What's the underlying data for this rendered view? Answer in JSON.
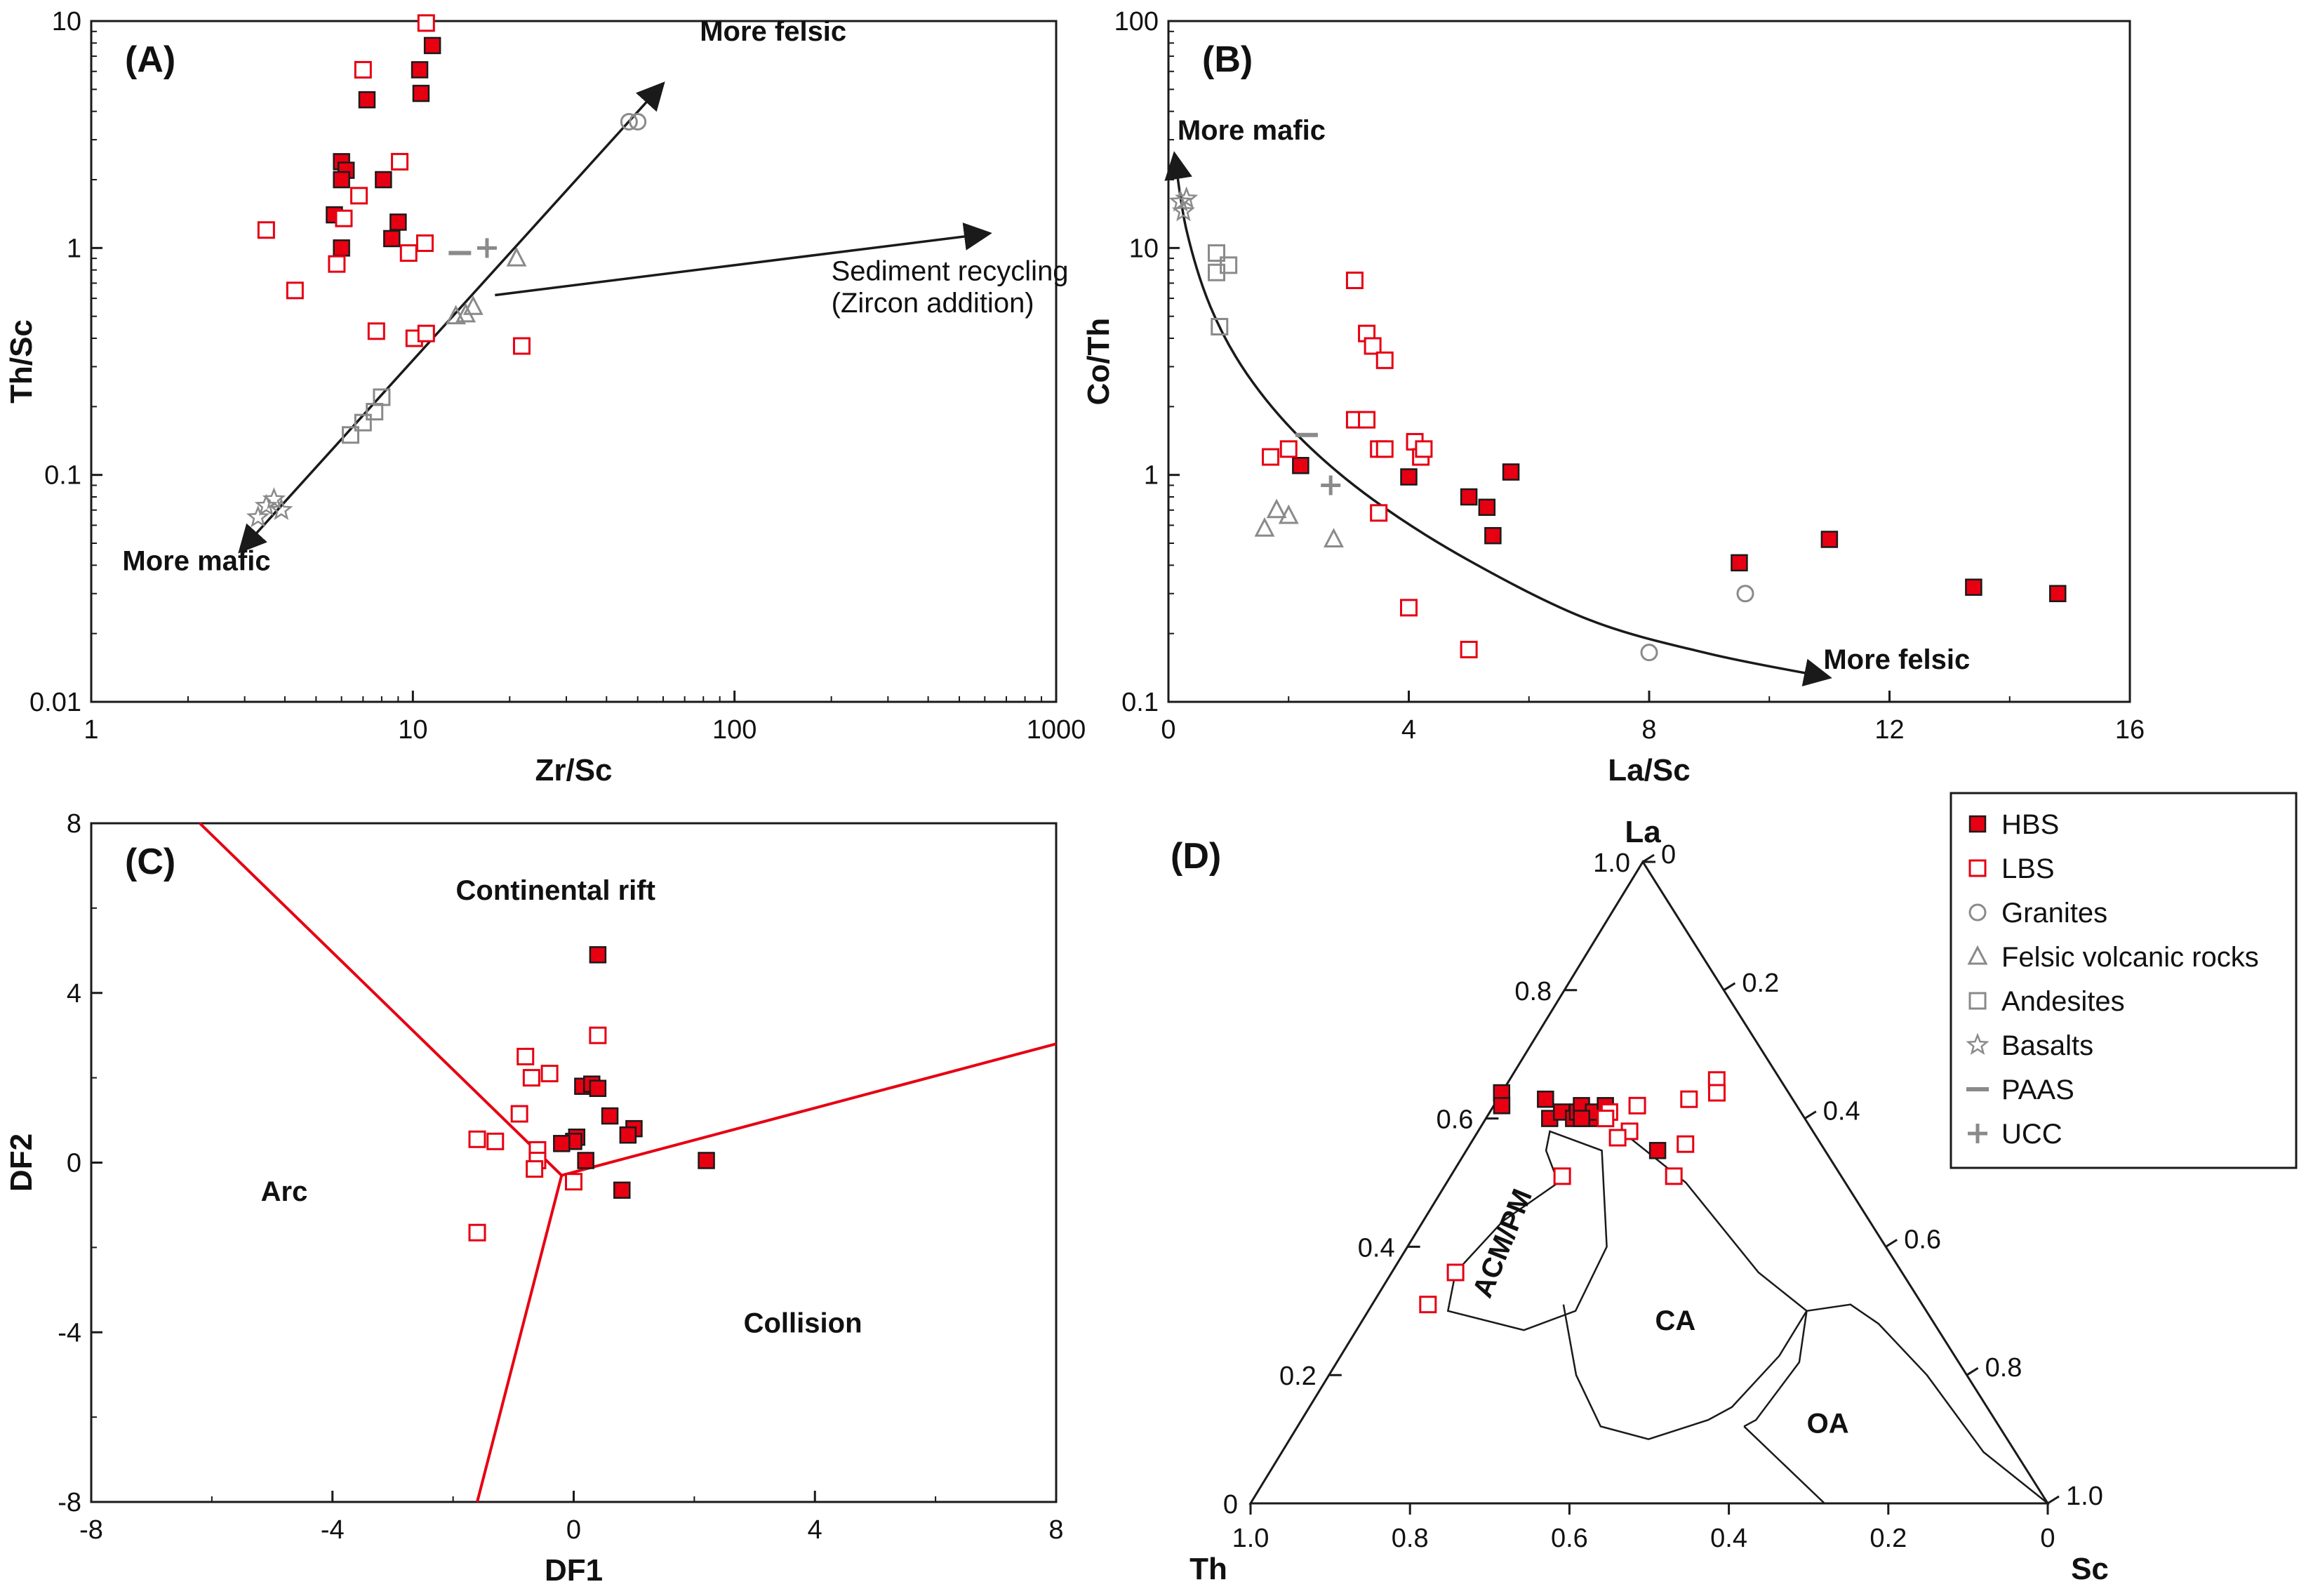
{
  "colors": {
    "hbs": "#e60012",
    "lbs": "#e60012",
    "ref": "#8a8a8a",
    "line": "#1a1a1a",
    "boundary": "#e60012"
  },
  "legend": {
    "items": [
      {
        "label": "HBS",
        "marker": "filled-square"
      },
      {
        "label": "LBS",
        "marker": "open-square-red"
      },
      {
        "label": "Granites",
        "marker": "circle"
      },
      {
        "label": "Felsic volcanic rocks",
        "marker": "triangle"
      },
      {
        "label": "Andesites",
        "marker": "square"
      },
      {
        "label": "Basalts",
        "marker": "star"
      },
      {
        "label": "PAAS",
        "marker": "dash"
      },
      {
        "label": "UCC",
        "marker": "plus"
      }
    ]
  },
  "chart_data": [
    {
      "panel": "(A)",
      "type": "scatter",
      "xscale": "log",
      "yscale": "log",
      "xlabel": "Zr/Sc",
      "ylabel": "Th/Sc",
      "xlim": [
        1,
        1000
      ],
      "ylim": [
        0.01,
        10
      ],
      "xticks": [
        "1",
        "10",
        "100",
        "1000"
      ],
      "yticks": [
        "0.01",
        "0.1",
        "1",
        "10"
      ],
      "annotations": [
        {
          "text": "More felsic",
          "x": 78,
          "y": 8.2,
          "bold": true
        },
        {
          "text": "More mafic",
          "x": 1.25,
          "y": 0.038,
          "bold": true
        },
        {
          "text": "Sediment recycling",
          "x": 200,
          "y": 0.72
        },
        {
          "text": "(Zircon addition)",
          "x": 200,
          "y": 0.52
        }
      ],
      "arrows": [
        {
          "name": "felsic-mafic",
          "from": [
            2.9,
            0.046
          ],
          "to": [
            60,
            5.3
          ],
          "double": true
        },
        {
          "name": "recycling",
          "from": [
            18,
            0.62
          ],
          "to": [
            620,
            1.16
          ]
        }
      ],
      "series": [
        {
          "name": "HBS",
          "marker": "filled-square",
          "points": [
            [
              11.5,
              7.8
            ],
            [
              7.2,
              4.5
            ],
            [
              10.5,
              6.1
            ],
            [
              10.6,
              4.8
            ],
            [
              6,
              2.4
            ],
            [
              6.2,
              2.2
            ],
            [
              6,
              2
            ],
            [
              8.1,
              2
            ],
            [
              5.7,
              1.4
            ],
            [
              9,
              1.3
            ],
            [
              8.6,
              1.1
            ],
            [
              6,
              1
            ]
          ]
        },
        {
          "name": "LBS",
          "marker": "open-square",
          "points": [
            [
              11,
              9.8
            ],
            [
              7,
              6.1
            ],
            [
              9.1,
              2.4
            ],
            [
              6.8,
              1.7
            ],
            [
              6.1,
              1.35
            ],
            [
              10.9,
              1.05
            ],
            [
              5.8,
              0.85
            ],
            [
              9.7,
              0.95
            ],
            [
              3.5,
              1.2
            ],
            [
              4.3,
              0.65
            ],
            [
              7.7,
              0.43
            ],
            [
              10.1,
              0.4
            ],
            [
              11,
              0.42
            ],
            [
              21.8,
              0.37
            ]
          ]
        },
        {
          "name": "Granites",
          "marker": "circle",
          "points": [
            [
              47,
              3.6
            ],
            [
              50,
              3.6
            ]
          ]
        },
        {
          "name": "Felsic volcanic rocks",
          "marker": "triangle",
          "points": [
            [
              21,
              0.9
            ],
            [
              13.6,
              0.5
            ],
            [
              14.6,
              0.51
            ],
            [
              15.4,
              0.55
            ]
          ]
        },
        {
          "name": "Andesites",
          "marker": "square",
          "points": [
            [
              6.4,
              0.15
            ],
            [
              7,
              0.17
            ],
            [
              7.6,
              0.19
            ],
            [
              8,
              0.22
            ]
          ]
        },
        {
          "name": "Basalts",
          "marker": "star",
          "points": [
            [
              3.3,
              0.065
            ],
            [
              3.5,
              0.073
            ],
            [
              3.7,
              0.078
            ],
            [
              3.9,
              0.07
            ]
          ]
        },
        {
          "name": "PAAS",
          "marker": "dash",
          "points": [
            [
              14,
              0.95
            ]
          ]
        },
        {
          "name": "UCC",
          "marker": "plus",
          "points": [
            [
              17,
              1
            ]
          ]
        }
      ]
    },
    {
      "panel": "(B)",
      "type": "scatter",
      "xscale": "linear",
      "yscale": "log",
      "xlabel": "La/Sc",
      "ylabel": "Co/Th",
      "xlim": [
        0,
        16
      ],
      "ylim": [
        0.1,
        100
      ],
      "xticks": [
        "0",
        "4",
        "8",
        "12",
        "16"
      ],
      "yticks": [
        "0.1",
        "1",
        "10",
        "100"
      ],
      "annotations": [
        {
          "text": "More mafic",
          "x": 0.15,
          "y": 30,
          "bold": true
        },
        {
          "text": "More felsic",
          "x": 10.9,
          "y": 0.14,
          "bold": true
        }
      ],
      "curve": {
        "name": "mixing-curve",
        "points": [
          [
            0.1,
            26
          ],
          [
            0.3,
            12
          ],
          [
            0.7,
            5.5
          ],
          [
            1.3,
            2.8
          ],
          [
            2.2,
            1.45
          ],
          [
            3.4,
            0.78
          ],
          [
            5,
            0.42
          ],
          [
            7,
            0.23
          ],
          [
            9,
            0.163
          ],
          [
            11,
            0.128
          ]
        ]
      },
      "series": [
        {
          "name": "HBS",
          "marker": "filled-square",
          "points": [
            [
              2.2,
              1.1
            ],
            [
              4,
              0.98
            ],
            [
              5,
              0.8
            ],
            [
              5.3,
              0.72
            ],
            [
              5.7,
              1.03
            ],
            [
              5.4,
              0.54
            ],
            [
              9.5,
              0.41
            ],
            [
              11,
              0.52
            ],
            [
              13.4,
              0.32
            ],
            [
              14.8,
              0.3
            ]
          ]
        },
        {
          "name": "LBS",
          "marker": "open-square",
          "points": [
            [
              3.1,
              7.2
            ],
            [
              3.3,
              4.2
            ],
            [
              3.4,
              3.7
            ],
            [
              3.6,
              3.2
            ],
            [
              3.1,
              1.75
            ],
            [
              3.3,
              1.75
            ],
            [
              3.5,
              1.3
            ],
            [
              3.6,
              1.3
            ],
            [
              4.1,
              1.4
            ],
            [
              4.2,
              1.2
            ],
            [
              4.25,
              1.3
            ],
            [
              1.7,
              1.2
            ],
            [
              2,
              1.3
            ],
            [
              3.5,
              0.68
            ],
            [
              4,
              0.26
            ],
            [
              5,
              0.17
            ]
          ]
        },
        {
          "name": "Granites",
          "marker": "circle",
          "points": [
            [
              9.6,
              0.3
            ],
            [
              8,
              0.165
            ]
          ]
        },
        {
          "name": "Felsic volcanic rocks",
          "marker": "triangle",
          "points": [
            [
              1.6,
              0.58
            ],
            [
              1.8,
              0.7
            ],
            [
              2,
              0.66
            ],
            [
              2.75,
              0.52
            ]
          ]
        },
        {
          "name": "Andesites",
          "marker": "square",
          "points": [
            [
              0.8,
              9.5
            ],
            [
              0.8,
              7.8
            ],
            [
              1,
              8.4
            ],
            [
              0.85,
              4.5
            ]
          ]
        },
        {
          "name": "Basalts",
          "marker": "star",
          "points": [
            [
              0.2,
              16
            ],
            [
              0.25,
              14.5
            ],
            [
              0.3,
              16.5
            ]
          ]
        },
        {
          "name": "PAAS",
          "marker": "dash",
          "points": [
            [
              2.3,
              1.5
            ]
          ]
        },
        {
          "name": "UCC",
          "marker": "plus",
          "points": [
            [
              2.7,
              0.9
            ]
          ]
        }
      ]
    },
    {
      "panel": "(C)",
      "type": "scatter",
      "xscale": "linear",
      "yscale": "linear",
      "xlabel": "DF1",
      "ylabel": "DF2",
      "xlim": [
        -8,
        8
      ],
      "ylim": [
        -8,
        8
      ],
      "xticks": [
        "-8",
        "-4",
        "0",
        "4",
        "8"
      ],
      "yticks": [
        "-8",
        "-4",
        "0",
        "4",
        "8"
      ],
      "fields": [
        {
          "text": "Continental rift",
          "x": -0.3,
          "y": 6.2
        },
        {
          "text": "Arc",
          "x": -4.8,
          "y": -0.9
        },
        {
          "text": "Collision",
          "x": 3.8,
          "y": -4
        }
      ],
      "boundaries": [
        {
          "name": "arc-rift",
          "from": [
            -6.2,
            8
          ],
          "to": [
            -0.2,
            -0.3
          ]
        },
        {
          "name": "rift-collision",
          "from": [
            -0.2,
            -0.3
          ],
          "to": [
            8,
            2.8
          ]
        },
        {
          "name": "arc-collision",
          "from": [
            -0.2,
            -0.3
          ],
          "to": [
            -1.6,
            -8
          ]
        }
      ],
      "series": [
        {
          "name": "HBS",
          "marker": "filled-square",
          "points": [
            [
              0.4,
              4.9
            ],
            [
              0.15,
              1.8
            ],
            [
              0.3,
              1.85
            ],
            [
              0.4,
              1.75
            ],
            [
              0.6,
              1.1
            ],
            [
              1,
              0.8
            ],
            [
              0.9,
              0.65
            ],
            [
              0.05,
              0.6
            ],
            [
              0,
              0.5
            ],
            [
              -0.2,
              0.45
            ],
            [
              0.2,
              0.05
            ],
            [
              0.8,
              -0.65
            ],
            [
              2.2,
              0.05
            ]
          ]
        },
        {
          "name": "LBS",
          "marker": "open-square",
          "points": [
            [
              0.4,
              3
            ],
            [
              -0.8,
              2.5
            ],
            [
              -0.7,
              2
            ],
            [
              -0.4,
              2.1
            ],
            [
              -0.9,
              1.15
            ],
            [
              -1.6,
              0.55
            ],
            [
              -1.3,
              0.5
            ],
            [
              -0.6,
              0.3
            ],
            [
              -0.6,
              0.05
            ],
            [
              -0.65,
              -0.15
            ],
            [
              0,
              -0.45
            ],
            [
              -1.6,
              -1.65
            ]
          ]
        }
      ]
    },
    {
      "panel": "(D)",
      "type": "ternary",
      "apex_labels": {
        "top": "La",
        "left": "Th",
        "right": "Sc"
      },
      "left_ticks": [
        "0",
        "0.2",
        "0.4",
        "0.6",
        "0.8",
        "1.0"
      ],
      "right_ticks": [
        "0",
        "0.2",
        "0.4",
        "0.6",
        "0.8",
        "1.0"
      ],
      "bottom_ticks": [
        "1.0",
        "0.8",
        "0.6",
        "0.4",
        "0.2",
        "0"
      ],
      "fields": [
        {
          "text": "ACM/PM",
          "rotated": true
        },
        {
          "text": "CA"
        },
        {
          "text": "OA"
        }
      ],
      "series": [
        {
          "name": "HBS",
          "note": "plotted as [La,Th,Sc] fractions",
          "marker": "filled-square",
          "points": [
            [
              0.64,
              0.36,
              0
            ],
            [
              0.62,
              0.37,
              0.01
            ],
            [
              0.6,
              0.32,
              0.08
            ],
            [
              0.61,
              0.3,
              0.09
            ],
            [
              0.6,
              0.29,
              0.11
            ],
            [
              0.61,
              0.28,
              0.11
            ],
            [
              0.62,
              0.27,
              0.11
            ],
            [
              0.6,
              0.27,
              0.13
            ],
            [
              0.55,
              0.21,
              0.24
            ],
            [
              0.63,
              0.31,
              0.06
            ],
            [
              0.61,
              0.26,
              0.13
            ],
            [
              0.62,
              0.24,
              0.14
            ],
            [
              0.6,
              0.28,
              0.12
            ]
          ]
        },
        {
          "name": "LBS",
          "marker": "open-square",
          "points": [
            [
              0.66,
              0.08,
              0.26
            ],
            [
              0.64,
              0.09,
              0.27
            ],
            [
              0.63,
              0.13,
              0.24
            ],
            [
              0.62,
              0.2,
              0.18
            ],
            [
              0.61,
              0.24,
              0.15
            ],
            [
              0.6,
              0.25,
              0.15
            ],
            [
              0.58,
              0.23,
              0.19
            ],
            [
              0.56,
              0.17,
              0.27
            ],
            [
              0.51,
              0.21,
              0.28
            ],
            [
              0.51,
              0.35,
              0.14
            ],
            [
              0.36,
              0.56,
              0.08
            ],
            [
              0.31,
              0.62,
              0.07
            ],
            [
              0.57,
              0.25,
              0.18
            ]
          ]
        }
      ]
    }
  ]
}
